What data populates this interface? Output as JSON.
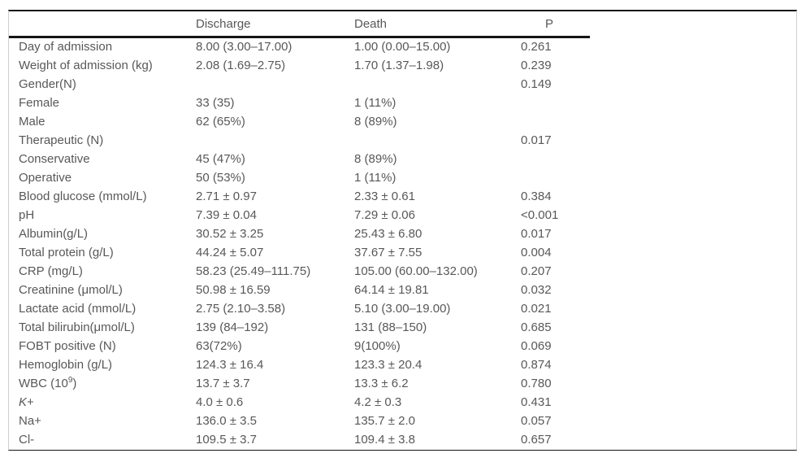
{
  "table": {
    "columns": {
      "label": "",
      "discharge": "Discharge",
      "death": "Death",
      "p": "P"
    },
    "rows": [
      {
        "label": "Day of admission",
        "discharge": "8.00 (3.00–17.00)",
        "death": "1.00 (0.00–15.00)",
        "p": "0.261"
      },
      {
        "label": "Weight of admission (kg)",
        "discharge": "2.08 (1.69–2.75)",
        "death": "1.70 (1.37–1.98)",
        "p": "0.239"
      },
      {
        "label": "Gender(N)",
        "discharge": "",
        "death": "",
        "p": "0.149"
      },
      {
        "label": "Female",
        "discharge": "33 (35)",
        "death": "1 (11%)",
        "p": ""
      },
      {
        "label": "Male",
        "discharge": "62 (65%)",
        "death": "8 (89%)",
        "p": ""
      },
      {
        "label": "Therapeutic (N)",
        "discharge": "",
        "death": "",
        "p": "0.017"
      },
      {
        "label": "Conservative",
        "discharge": "45 (47%)",
        "death": "8 (89%)",
        "p": ""
      },
      {
        "label": "Operative",
        "discharge": "50 (53%)",
        "death": "1 (11%)",
        "p": ""
      },
      {
        "label": "Blood glucose (mmol/L)",
        "discharge": "2.71 ± 0.97",
        "death": "2.33 ± 0.61",
        "p": "0.384"
      },
      {
        "label": "pH",
        "discharge": "7.39 ± 0.04",
        "death": "7.29 ± 0.06",
        "p": "<0.001"
      },
      {
        "label": "Albumin(g/L)",
        "discharge": "30.52 ± 3.25",
        "death": "25.43 ± 6.80",
        "p": "0.017"
      },
      {
        "label": "Total protein (g/L)",
        "discharge": "44.24 ± 5.07",
        "death": "37.67 ± 7.55",
        "p": "0.004"
      },
      {
        "label": "CRP (mg/L)",
        "discharge": "58.23 (25.49–111.75)",
        "death": "105.00 (60.00–132.00)",
        "p": "0.207"
      },
      {
        "label": "Creatinine (μmol/L)",
        "discharge": "50.98 ± 16.59",
        "death": "64.14 ± 19.81",
        "p": "0.032"
      },
      {
        "label": "Lactate acid (mmol/L)",
        "discharge": "2.75 (2.10–3.58)",
        "death": "5.10 (3.00–19.00)",
        "p": "0.021"
      },
      {
        "label": "Total bilirubin(μmol/L)",
        "discharge": "139 (84–192)",
        "death": "131 (88–150)",
        "p": "0.685"
      },
      {
        "label": "FOBT positive (N)",
        "discharge": "63(72%)",
        "death": "9(100%)",
        "p": "0.069"
      },
      {
        "label": "Hemoglobin (g/L)",
        "discharge": "124.3 ± 16.4",
        "death": "123.3 ± 20.4",
        "p": "0.874"
      },
      {
        "label": "WBC (10^{9})",
        "discharge": "13.7 ± 3.7",
        "death": "13.3 ± 6.2",
        "p": "0.780"
      },
      {
        "label": "*K*+",
        "discharge": "4.0 ± 0.6",
        "death": "4.2 ± 0.3",
        "p": "0.431"
      },
      {
        "label": "Na+",
        "discharge": "136.0 ± 3.5",
        "death": "135.7 ± 2.0",
        "p": "0.057"
      },
      {
        "label": "Cl-",
        "discharge": "109.5 ± 3.7",
        "death": "109.4 ± 3.8",
        "p": "0.657"
      }
    ]
  },
  "colors": {
    "text": "#57585a",
    "rule": "#151515",
    "side_border": "#d0d0d0",
    "background": "#ffffff"
  }
}
